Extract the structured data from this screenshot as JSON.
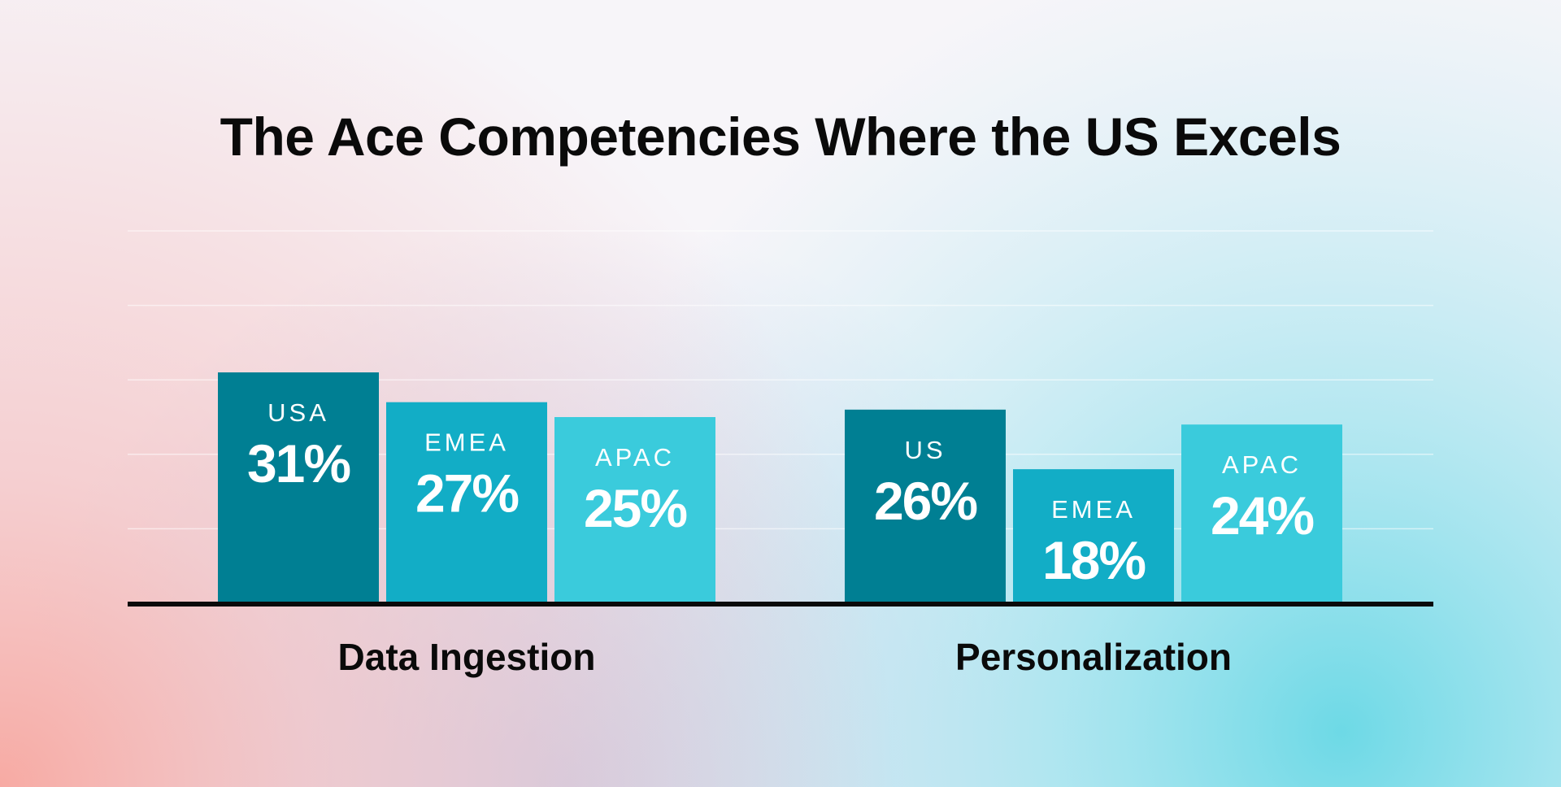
{
  "chart_data": {
    "type": "bar",
    "title": "The Ace Competencies Where the US Excels",
    "ylim": [
      0,
      50
    ],
    "grid": true,
    "groups": [
      {
        "category": "Data Ingestion",
        "bars": [
          {
            "region": "USA",
            "value": 31,
            "label": "31%",
            "color": "#007f93"
          },
          {
            "region": "EMEA",
            "value": 27,
            "label": "27%",
            "color": "#12adc6"
          },
          {
            "region": "APAC",
            "value": 25,
            "label": "25%",
            "color": "#3acbdc"
          }
        ]
      },
      {
        "category": "Personalization",
        "bars": [
          {
            "region": "US",
            "value": 26,
            "label": "26%",
            "color": "#007f93"
          },
          {
            "region": "EMEA",
            "value": 18,
            "label": "18%",
            "color": "#12adc6"
          },
          {
            "region": "APAC",
            "value": 24,
            "label": "24%",
            "color": "#3acbdc"
          }
        ]
      }
    ]
  }
}
